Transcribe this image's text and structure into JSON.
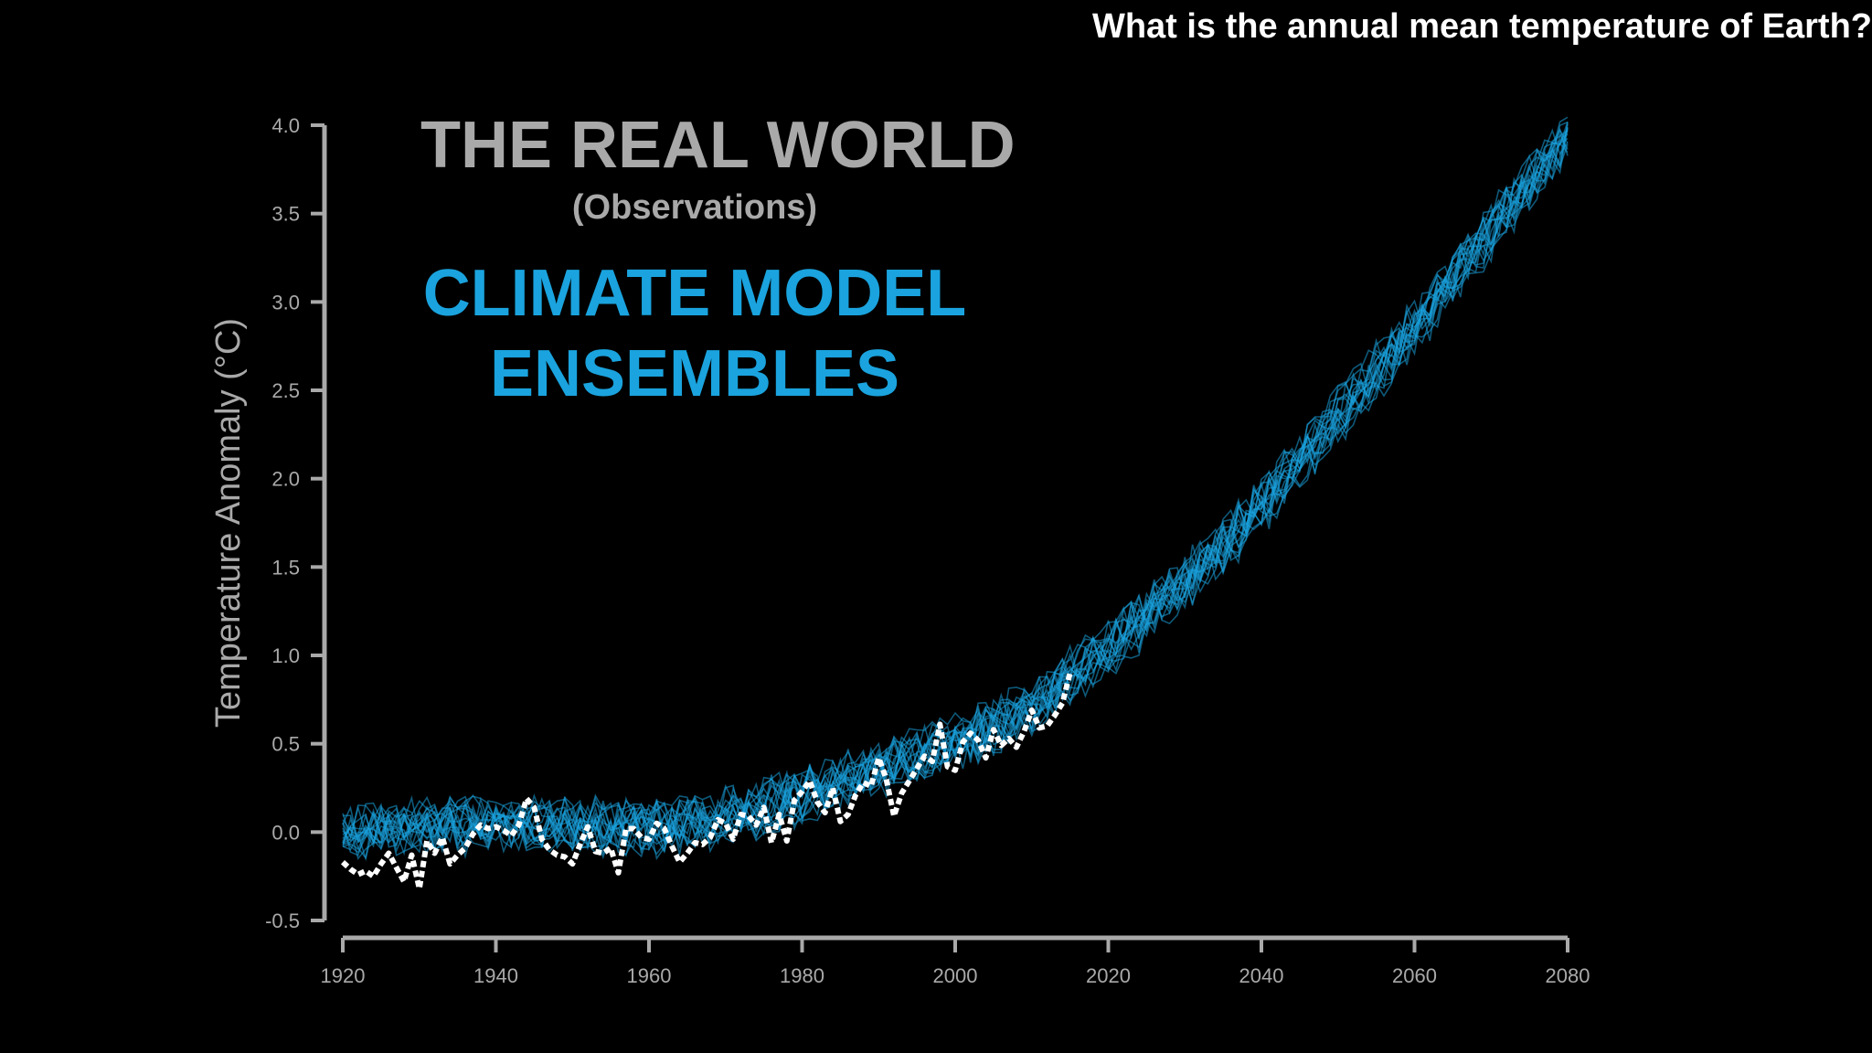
{
  "header": {
    "question": "What is the annual mean temperature of Earth?"
  },
  "annotations": {
    "real_world_title": "THE REAL WORLD",
    "real_world_subtitle": "(Observations)",
    "model_line1": "CLIMATE MODEL",
    "model_line2": "ENSEMBLES"
  },
  "colors": {
    "background": "#000000",
    "axis": "#a9a9a9",
    "observations": "#ffffff",
    "ensemble": "#1aa3de"
  },
  "chart_data": {
    "type": "line",
    "ylabel": "Temperature Anomaly (°C)",
    "xlabel": "",
    "xlim": [
      1920,
      2080
    ],
    "ylim": [
      -0.5,
      4.0
    ],
    "xticks": [
      1920,
      1940,
      1960,
      1980,
      2000,
      2020,
      2040,
      2060,
      2080
    ],
    "yticks": [
      "-0.5",
      "0.0",
      "0.5",
      "1.0",
      "1.5",
      "2.0",
      "2.5",
      "3.0",
      "3.5",
      "4.0"
    ],
    "grid": false,
    "series": [
      {
        "style": "white dashed",
        "x": [
          1920,
          1921,
          1922,
          1923,
          1924,
          1925,
          1926,
          1927,
          1928,
          1929,
          1930,
          1931,
          1932,
          1933,
          1934,
          1935,
          1936,
          1937,
          1938,
          1939,
          1940,
          1941,
          1942,
          1943,
          1944,
          1945,
          1946,
          1947,
          1948,
          1949,
          1950,
          1951,
          1952,
          1953,
          1954,
          1955,
          1956,
          1957,
          1958,
          1959,
          1960,
          1961,
          1962,
          1963,
          1964,
          1965,
          1966,
          1967,
          1968,
          1969,
          1970,
          1971,
          1972,
          1973,
          1974,
          1975,
          1976,
          1977,
          1978,
          1979,
          1980,
          1981,
          1982,
          1983,
          1984,
          1985,
          1986,
          1987,
          1988,
          1989,
          1990,
          1991,
          1992,
          1993,
          1994,
          1995,
          1996,
          1997,
          1998,
          1999,
          2000,
          2001,
          2002,
          2003,
          2004,
          2005,
          2006,
          2007,
          2008,
          2009,
          2010,
          2011,
          2012,
          2013,
          2014,
          2015
        ],
        "y": [
          -0.17,
          -0.21,
          -0.24,
          -0.22,
          -0.25,
          -0.18,
          -0.12,
          -0.2,
          -0.28,
          -0.13,
          -0.32,
          -0.05,
          -0.12,
          -0.03,
          -0.18,
          -0.13,
          -0.09,
          -0.01,
          0.04,
          0.02,
          0.03,
          0.01,
          -0.02,
          0.04,
          0.19,
          0.14,
          -0.04,
          -0.1,
          -0.13,
          -0.14,
          -0.18,
          -0.07,
          0.03,
          -0.11,
          -0.12,
          -0.09,
          -0.23,
          0.02,
          0.02,
          -0.03,
          -0.04,
          0.05,
          0.02,
          -0.08,
          -0.17,
          -0.12,
          -0.06,
          -0.07,
          -0.03,
          0.07,
          0.05,
          -0.04,
          0.1,
          0.09,
          0.04,
          0.14,
          -0.06,
          0.1,
          -0.05,
          0.18,
          0.23,
          0.29,
          0.17,
          0.11,
          0.25,
          0.06,
          0.1,
          0.21,
          0.28,
          0.26,
          0.42,
          0.3,
          0.09,
          0.22,
          0.29,
          0.36,
          0.43,
          0.4,
          0.61,
          0.37,
          0.35,
          0.51,
          0.56,
          0.52,
          0.42,
          0.58,
          0.49,
          0.53,
          0.48,
          0.57,
          0.69,
          0.59,
          0.6,
          0.66,
          0.73,
          0.9
        ]
      },
      {
        "style": "blue ensemble",
        "x": [
          1920,
          1930,
          1940,
          1950,
          1960,
          1970,
          1980,
          1990,
          2000,
          2010,
          2020,
          2030,
          2040,
          2050,
          2060,
          2070,
          2080
        ],
        "y": [
          0.0,
          0.02,
          0.05,
          0.04,
          0.02,
          0.08,
          0.2,
          0.35,
          0.5,
          0.7,
          1.05,
          1.4,
          1.85,
          2.35,
          2.85,
          3.4,
          3.95
        ]
      }
    ]
  }
}
